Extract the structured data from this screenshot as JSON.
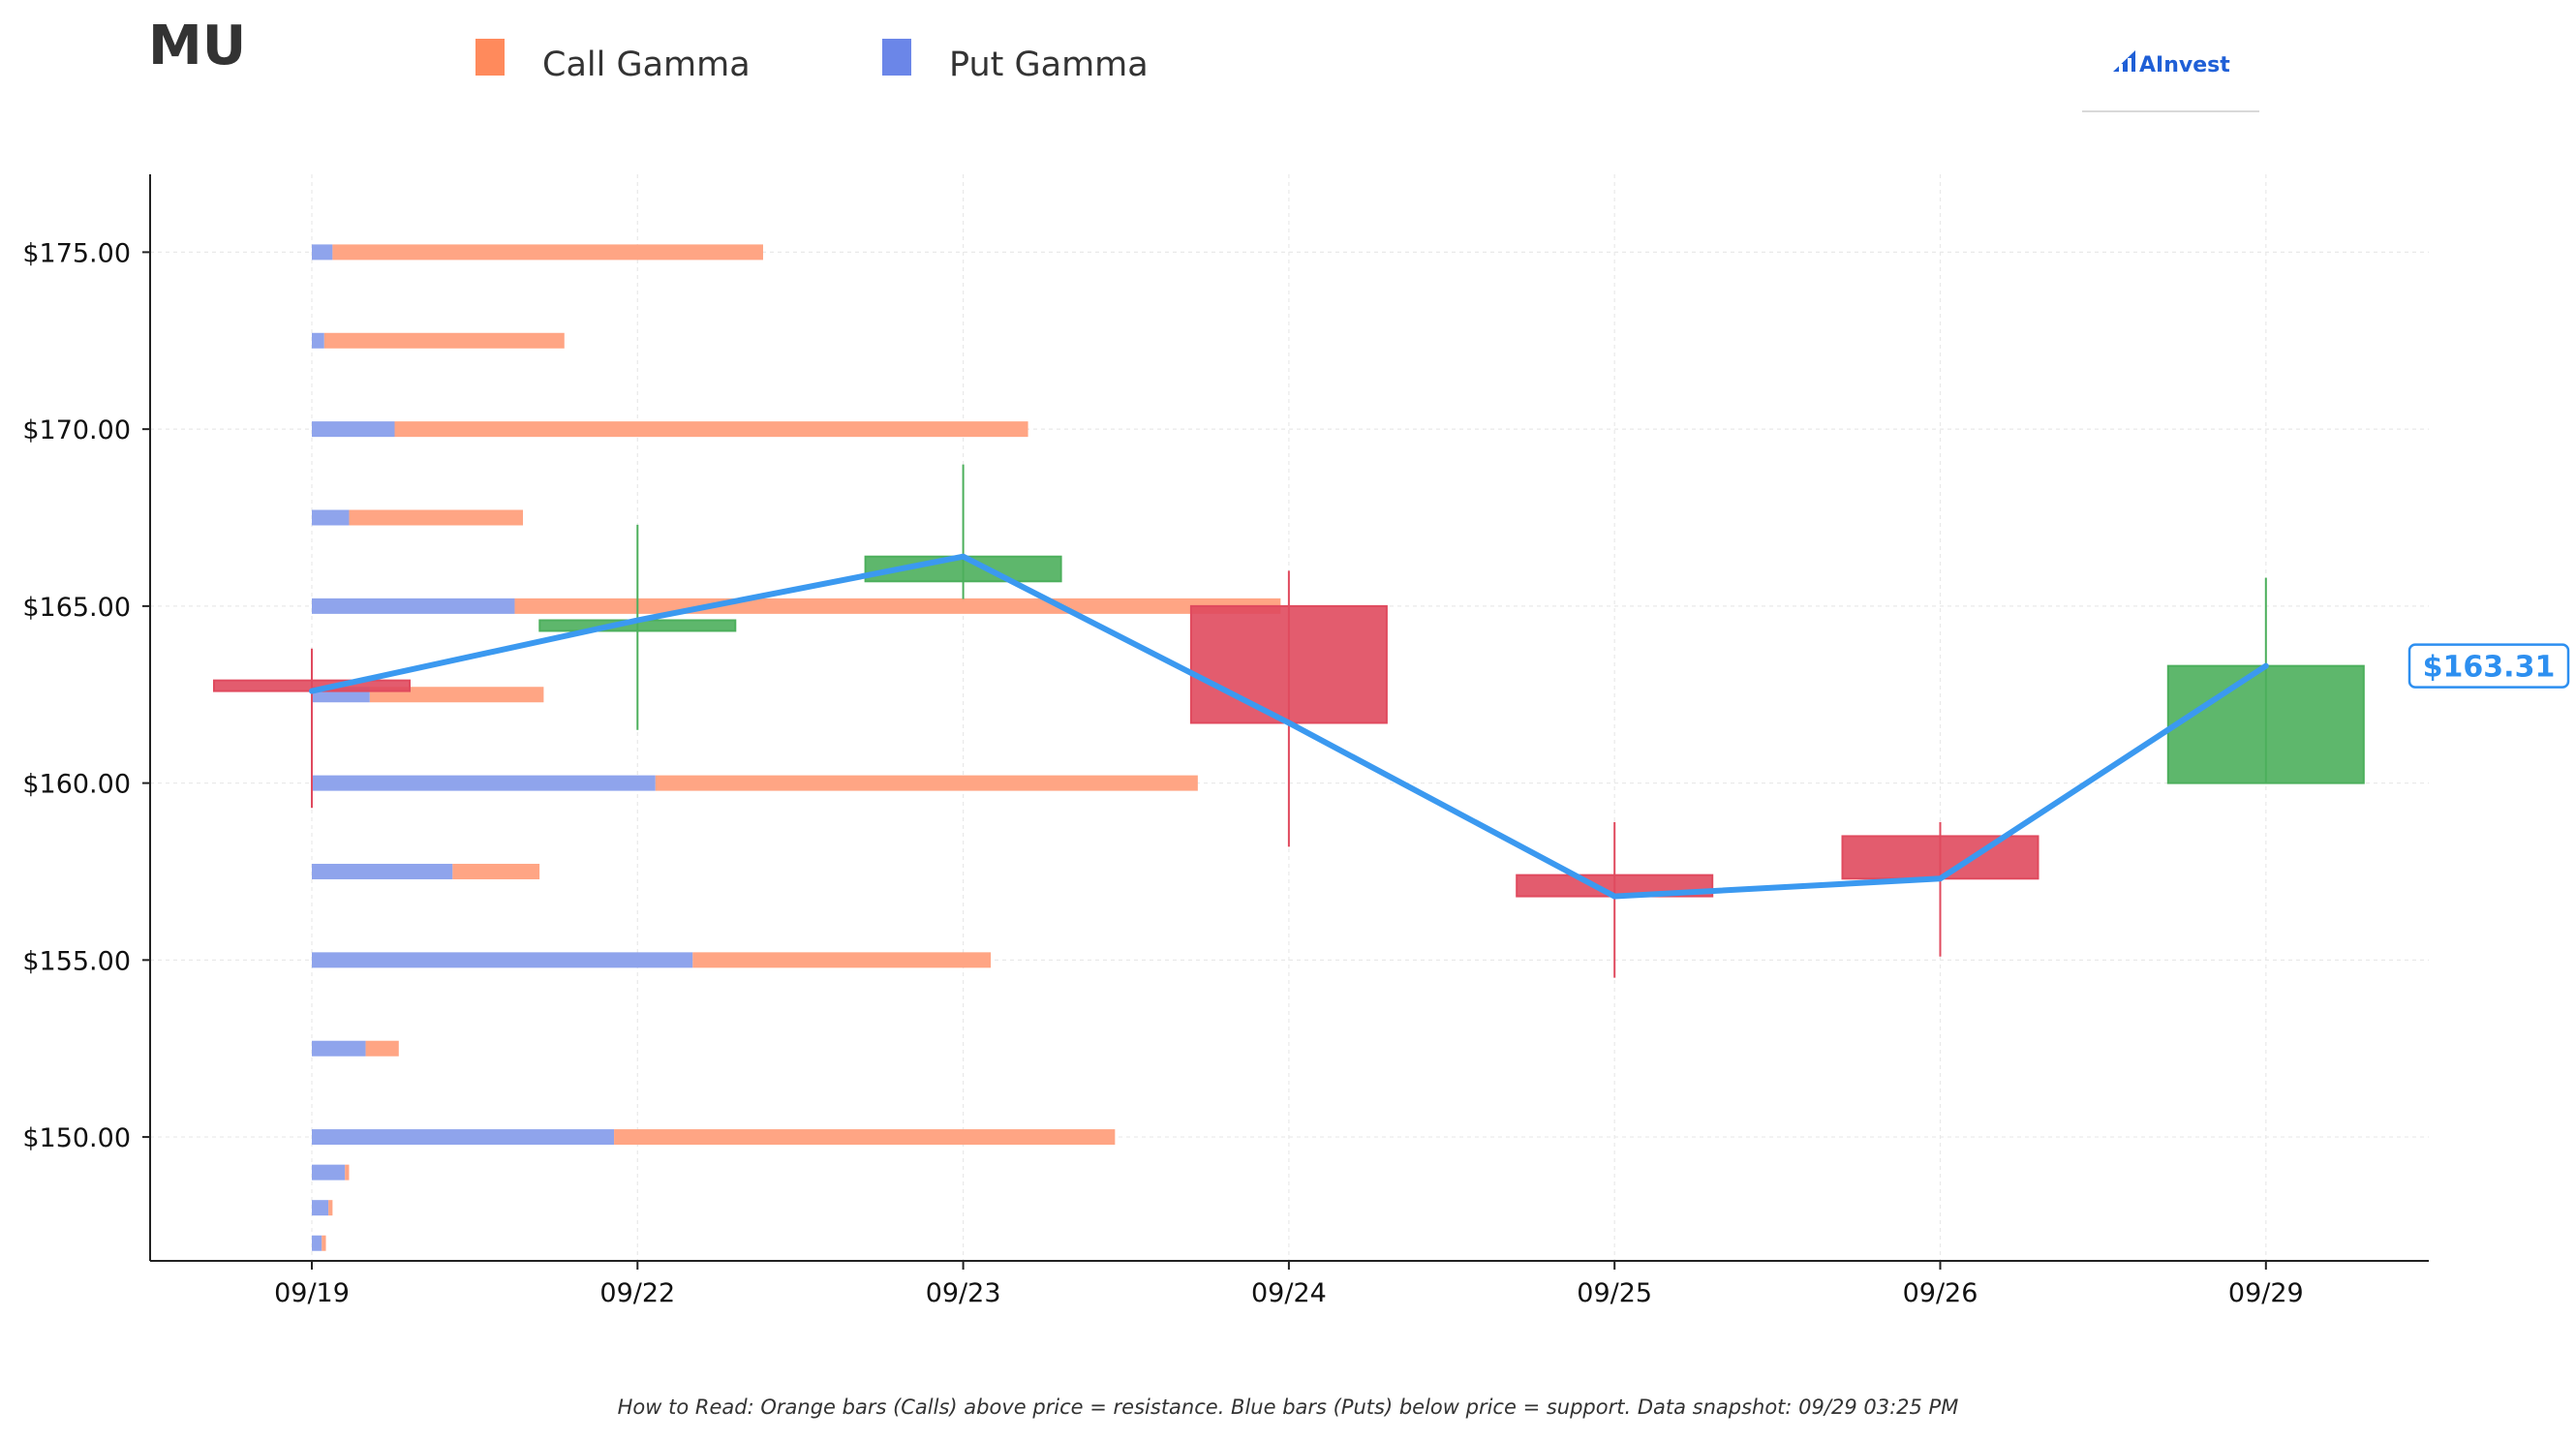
{
  "header": {
    "ticker": "MU",
    "logo_text": "AInvest"
  },
  "legend": [
    {
      "label": "Call Gamma",
      "color": "#ff8a5c"
    },
    {
      "label": "Put Gamma",
      "color": "#6b86e8"
    }
  ],
  "footer": {
    "note": "How to Read: Orange bars (Calls) above price = resistance. Blue bars (Puts) below price = support. Data snapshot: 09/29 03:25 PM"
  },
  "colors": {
    "call": "#ffa584",
    "put": "#8fa4ec",
    "up_candle": "#4caf5c",
    "down_candle": "#e04a5e",
    "price_line": "#3b99f0",
    "price_label": "#2d8ff0",
    "axis": "#222222",
    "grid": "#e9e9e9"
  },
  "chart_data": {
    "type": "candlestick_with_gamma_bars",
    "categories": [
      "09/19",
      "09/22",
      "09/23",
      "09/24",
      "09/25",
      "09/26",
      "09/29"
    ],
    "y_tick_labels": [
      "$150.00",
      "$155.00",
      "$160.00",
      "$165.00",
      "$170.00",
      "$175.00"
    ],
    "y_ticks": [
      150,
      155,
      160,
      165,
      170,
      175
    ],
    "ylim": [
      146.5,
      177.2
    ],
    "grid": true,
    "legend_position": "top-left",
    "candles": [
      {
        "date": "09/19",
        "open": 162.9,
        "close": 162.6,
        "high": 163.8,
        "low": 159.3
      },
      {
        "date": "09/22",
        "open": 164.3,
        "close": 164.6,
        "high": 167.3,
        "low": 161.5
      },
      {
        "date": "09/23",
        "open": 165.7,
        "close": 166.4,
        "high": 169.0,
        "low": 165.2
      },
      {
        "date": "09/24",
        "open": 165.0,
        "close": 161.7,
        "high": 166.0,
        "low": 158.2
      },
      {
        "date": "09/25",
        "open": 157.4,
        "close": 156.8,
        "high": 158.9,
        "low": 154.5
      },
      {
        "date": "09/26",
        "open": 158.5,
        "close": 157.3,
        "high": 158.9,
        "low": 155.1
      },
      {
        "date": "09/29",
        "open": 160.0,
        "close": 163.31,
        "high": 165.8,
        "low": 160.0
      }
    ],
    "price_line": {
      "name": "close",
      "values": [
        162.6,
        164.6,
        166.4,
        161.7,
        156.8,
        157.3,
        163.31
      ],
      "last_label": "$163.31"
    },
    "gamma_strikes": [
      {
        "strike": 175.0,
        "put": 0.25,
        "call": 5.2
      },
      {
        "strike": 172.5,
        "put": 0.15,
        "call": 2.9
      },
      {
        "strike": 170.0,
        "put": 1.0,
        "call": 7.65
      },
      {
        "strike": 167.5,
        "put": 0.45,
        "call": 2.1
      },
      {
        "strike": 165.0,
        "put": 2.45,
        "call": 9.25
      },
      {
        "strike": 162.5,
        "put": 0.7,
        "call": 2.1
      },
      {
        "strike": 160.0,
        "put": 4.15,
        "call": 6.55
      },
      {
        "strike": 157.5,
        "put": 1.7,
        "call": 1.05
      },
      {
        "strike": 155.0,
        "put": 4.6,
        "call": 3.6
      },
      {
        "strike": 152.5,
        "put": 0.65,
        "call": 0.4
      },
      {
        "strike": 150.0,
        "put": 3.65,
        "call": 6.05
      },
      {
        "strike": 149.0,
        "put": 0.4,
        "call": 0.05
      },
      {
        "strike": 148.0,
        "put": 0.2,
        "call": 0.05
      },
      {
        "strike": 147.0,
        "put": 0.12,
        "call": 0.05
      }
    ]
  }
}
